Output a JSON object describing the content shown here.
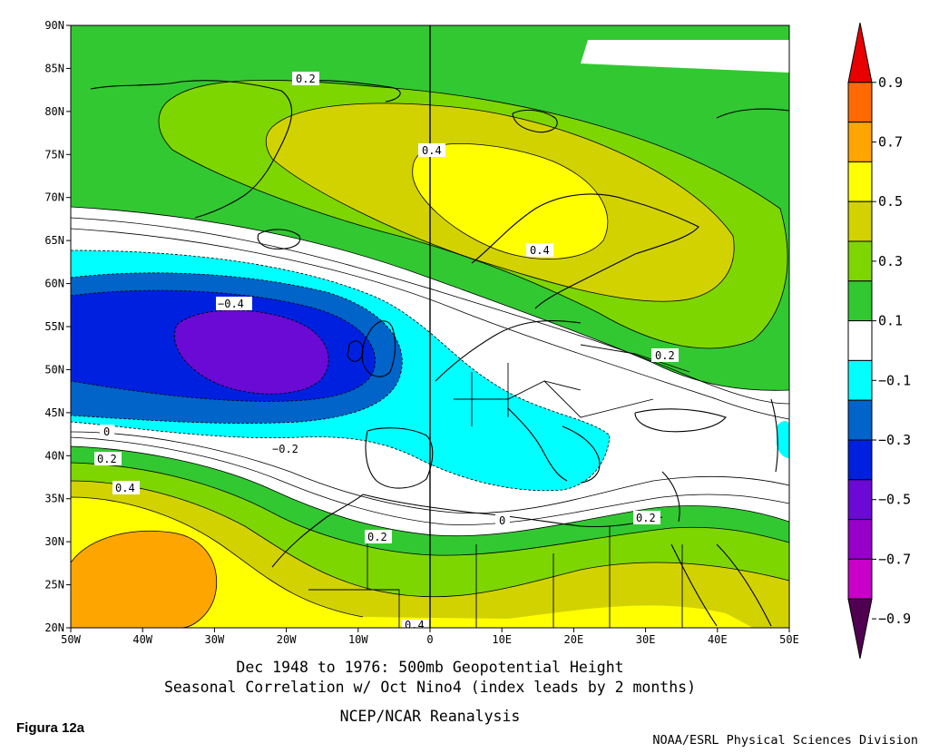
{
  "title": {
    "line1": "Dec 1948 to 1976: 500mb Geopotential Height",
    "line2": "Seasonal Correlation w/ Oct Nino4 (index leads by 2 months)",
    "line3": "NCEP/NCAR Reanalysis"
  },
  "figure_label": "Figura 12a",
  "credit": "NOAA/ESRL Physical Sciences Division",
  "axes": {
    "lon_labels": [
      "50W",
      "40W",
      "30W",
      "20W",
      "10W",
      "0",
      "10E",
      "20E",
      "30E",
      "40E",
      "50E"
    ],
    "lat_labels": [
      "90N",
      "85N",
      "80N",
      "75N",
      "70N",
      "65N",
      "60N",
      "55N",
      "50N",
      "45N",
      "40N",
      "35N",
      "30N",
      "25N",
      "20N"
    ]
  },
  "colorbar": {
    "labels": [
      "0.9",
      "0.7",
      "0.5",
      "0.3",
      "0.1",
      "−0.1",
      "−0.3",
      "−0.5",
      "−0.7",
      "−0.9"
    ],
    "colors": [
      "#e80000",
      "#ff6a00",
      "#ffa500",
      "#ffff00",
      "#d2d200",
      "#7ed600",
      "#32c832",
      "#ffffff",
      "#00ffff",
      "#0064c8",
      "#0020e0",
      "#6a0ad4",
      "#9600c8",
      "#c800c8",
      "#500050"
    ]
  },
  "colors": {
    "white": "#ffffff",
    "cyan": "#00ffff",
    "blue": "#0064c8",
    "deep_blue": "#0020e0",
    "purple": "#6a0ad4",
    "green": "#32c832",
    "light_green": "#7ed600",
    "olive": "#d2d200",
    "yellow": "#ffff00",
    "orange": "#ffa500"
  },
  "contour_labels": [
    "0.2",
    "0.4",
    "0.4",
    "0.2",
    "−0.4",
    "0",
    "0.2",
    "0.4",
    "−0.2",
    "0.2",
    "0",
    "0.2",
    "0.4"
  ]
}
